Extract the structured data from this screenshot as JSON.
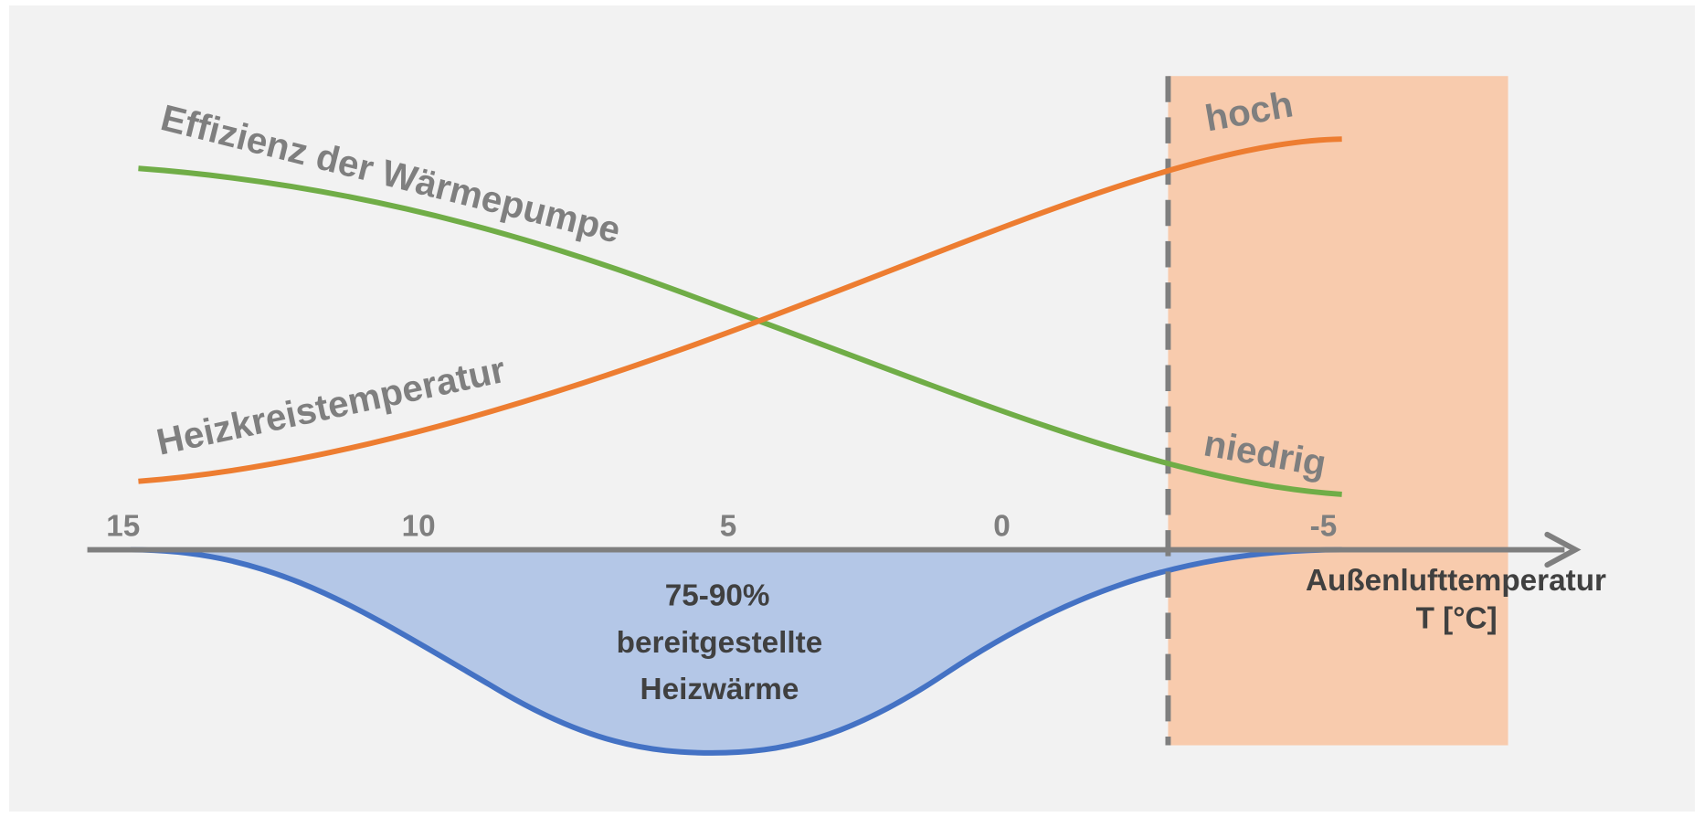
{
  "curves": {
    "efficiency": "Effizienz der Wärmepumpe",
    "heating_circuit": "Heizkreistemperatur"
  },
  "markers": {
    "high": "hoch",
    "low": "niedrig"
  },
  "axis": {
    "ticks": [
      "15",
      "10",
      "5",
      "0",
      "-5"
    ],
    "title_line1": "Außenlufttemperatur",
    "title_line2": "T [°C]"
  },
  "area_label": [
    "75-90%",
    "bereitgestellte",
    "Heizwärme"
  ]
}
